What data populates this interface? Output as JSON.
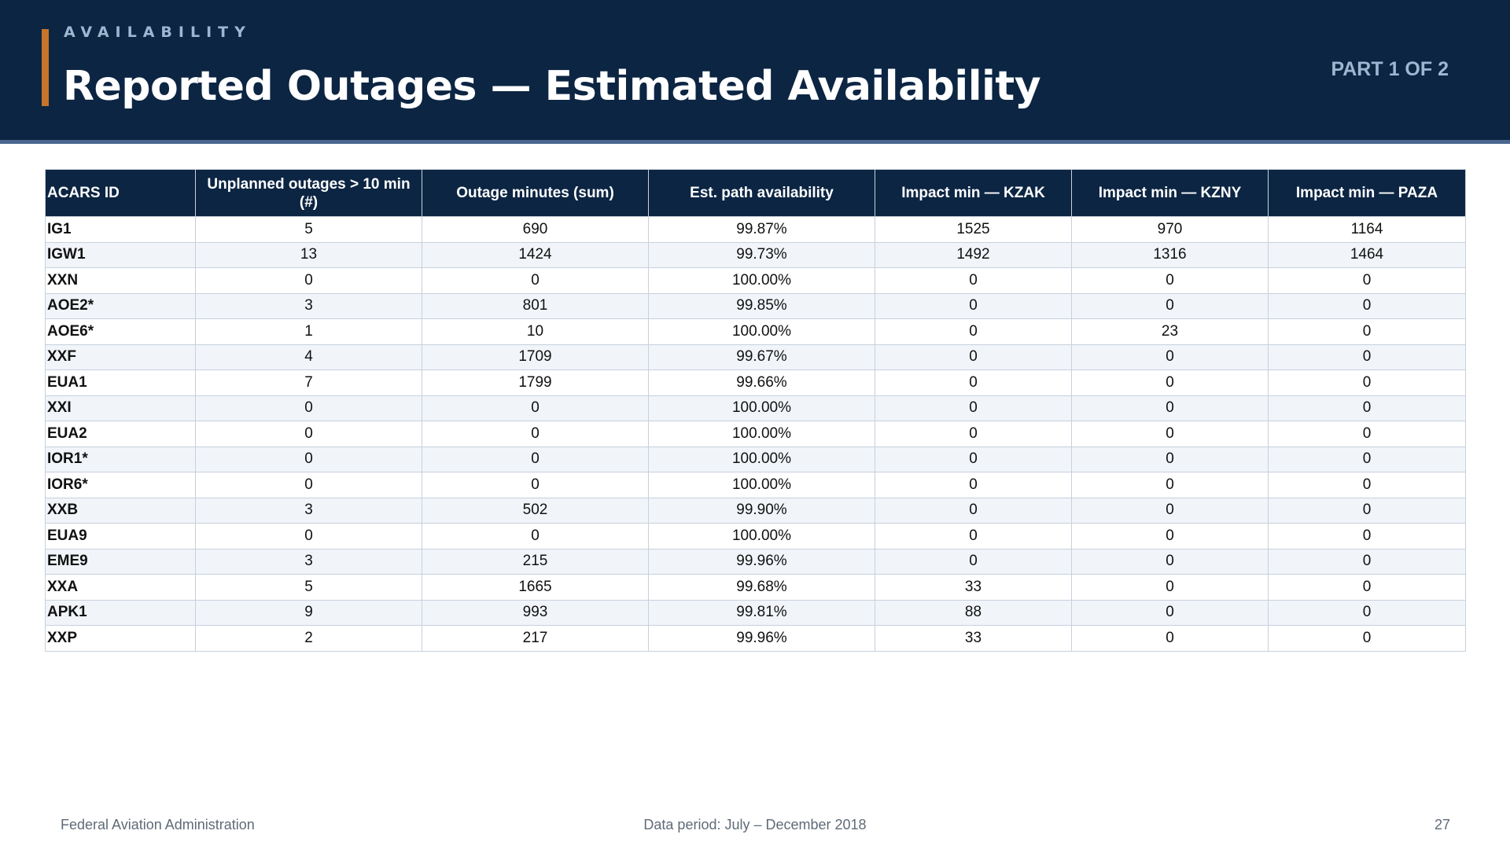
{
  "header": {
    "eyebrow": "AVAILABILITY",
    "title": "Reported Outages — Estimated Availability",
    "part": "PART 1 OF 2"
  },
  "table": {
    "columns": [
      "ACARS ID",
      "Unplanned outages > 10 min (#)",
      "Outage minutes (sum)",
      "Est. path availability",
      "Impact min — KZAK",
      "Impact min — KZNY",
      "Impact min — PAZA"
    ],
    "rows": [
      [
        "IG1",
        "5",
        "690",
        "99.87%",
        "1525",
        "970",
        "1164"
      ],
      [
        "IGW1",
        "13",
        "1424",
        "99.73%",
        "1492",
        "1316",
        "1464"
      ],
      [
        "XXN",
        "0",
        "0",
        "100.00%",
        "0",
        "0",
        "0"
      ],
      [
        "AOE2*",
        "3",
        "801",
        "99.85%",
        "0",
        "0",
        "0"
      ],
      [
        "AOE6*",
        "1",
        "10",
        "100.00%",
        "0",
        "23",
        "0"
      ],
      [
        "XXF",
        "4",
        "1709",
        "99.67%",
        "0",
        "0",
        "0"
      ],
      [
        "EUA1",
        "7",
        "1799",
        "99.66%",
        "0",
        "0",
        "0"
      ],
      [
        "XXI",
        "0",
        "0",
        "100.00%",
        "0",
        "0",
        "0"
      ],
      [
        "EUA2",
        "0",
        "0",
        "100.00%",
        "0",
        "0",
        "0"
      ],
      [
        "IOR1*",
        "0",
        "0",
        "100.00%",
        "0",
        "0",
        "0"
      ],
      [
        "IOR6*",
        "0",
        "0",
        "100.00%",
        "0",
        "0",
        "0"
      ],
      [
        "XXB",
        "3",
        "502",
        "99.90%",
        "0",
        "0",
        "0"
      ],
      [
        "EUA9",
        "0",
        "0",
        "100.00%",
        "0",
        "0",
        "0"
      ],
      [
        "EME9",
        "3",
        "215",
        "99.96%",
        "0",
        "0",
        "0"
      ],
      [
        "XXA",
        "5",
        "1665",
        "99.68%",
        "33",
        "0",
        "0"
      ],
      [
        "APK1",
        "9",
        "993",
        "99.81%",
        "88",
        "0",
        "0"
      ],
      [
        "XXP",
        "2",
        "217",
        "99.96%",
        "33",
        "0",
        "0"
      ]
    ]
  },
  "footer": {
    "left": "Federal Aviation Administration",
    "center": "Data period: July – December 2018",
    "page": "27"
  },
  "colors": {
    "header_bg": "#0c2543",
    "accent": "#c8742a",
    "muted_blue": "#9fb6d3"
  }
}
